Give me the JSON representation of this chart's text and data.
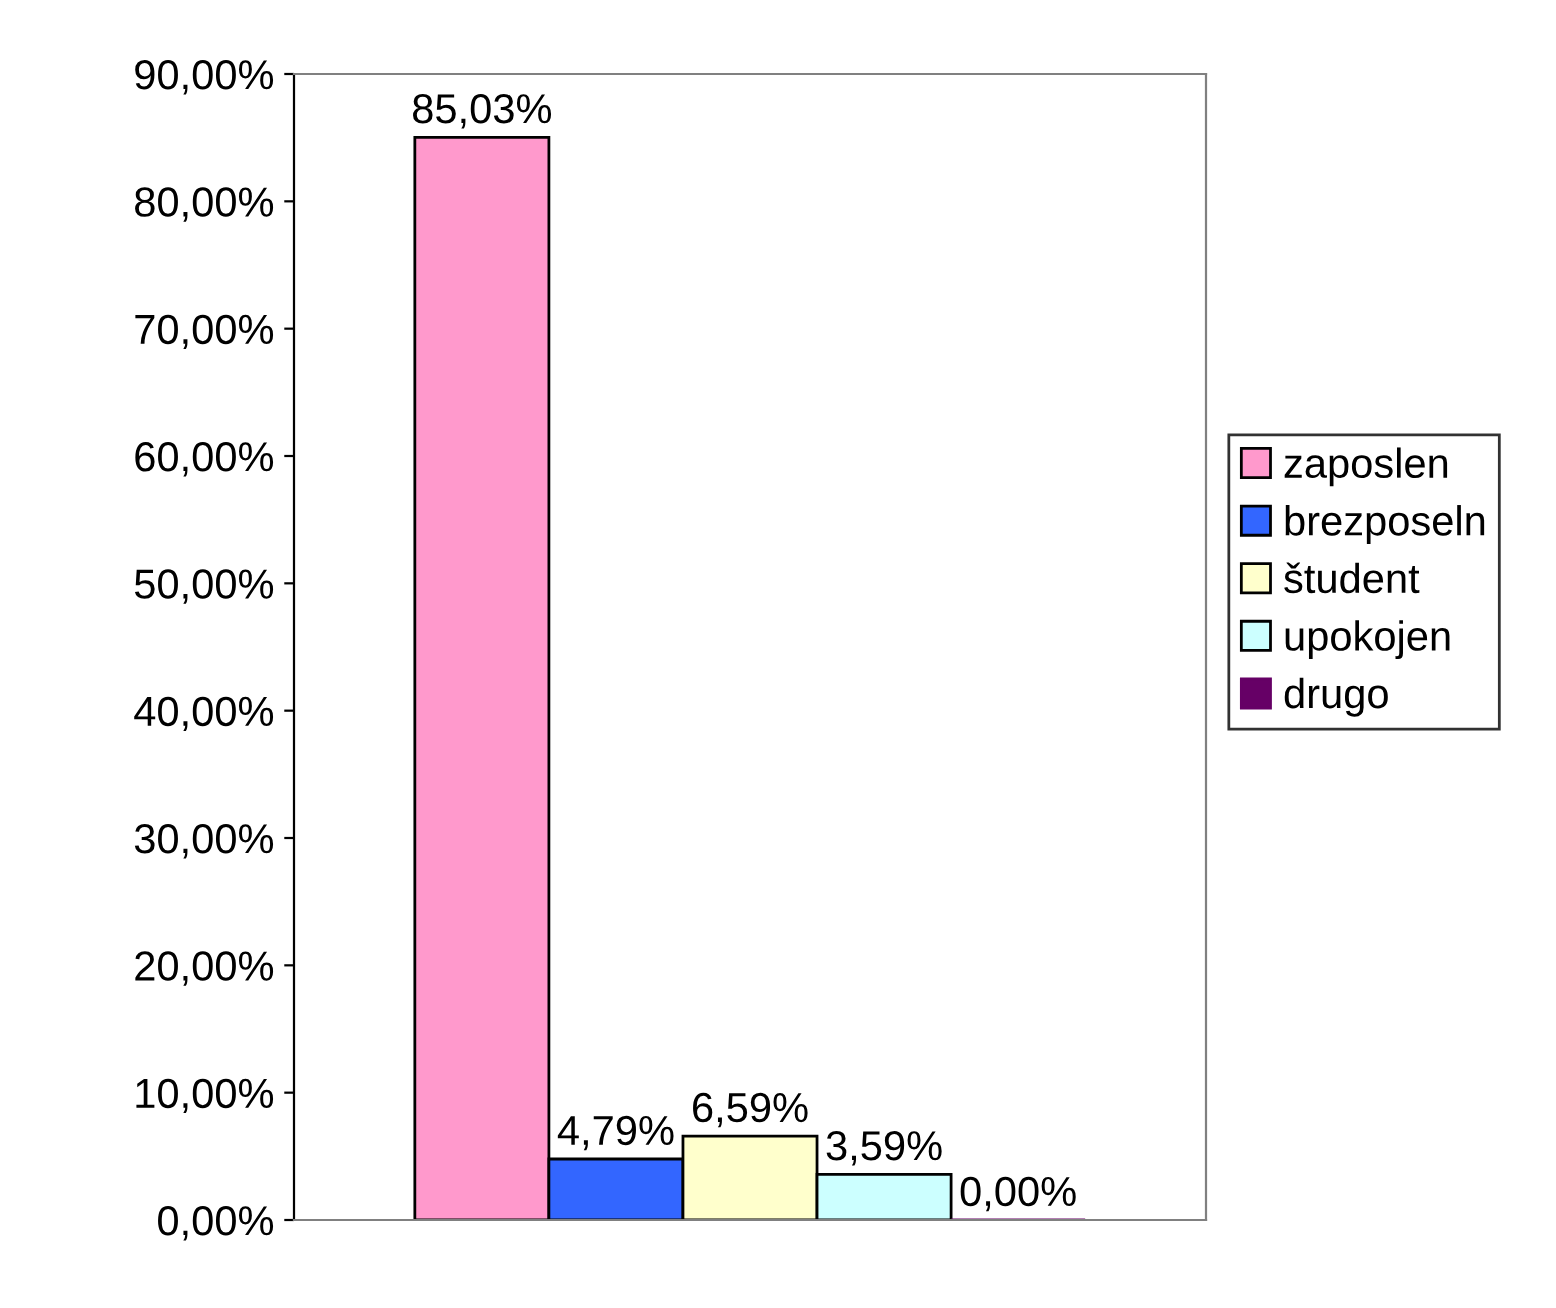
{
  "chart_data": {
    "type": "bar",
    "categories": [
      null
    ],
    "series": [
      {
        "name": "zaposlen",
        "color": "#ff99cc",
        "values": [
          85.03
        ],
        "value_labels": [
          "85,03%"
        ]
      },
      {
        "name": "brezposeln",
        "color": "#3366ff",
        "values": [
          4.79
        ],
        "value_labels": [
          "4,79%"
        ]
      },
      {
        "name": "študent",
        "color": "#ffffcc",
        "values": [
          6.59
        ],
        "value_labels": [
          "6,59%"
        ]
      },
      {
        "name": "upokojen",
        "color": "#ccffff",
        "values": [
          3.59
        ],
        "value_labels": [
          "3,59%"
        ]
      },
      {
        "name": "drugo",
        "color": "#660066",
        "values": [
          0.0
        ],
        "value_labels": [
          "0,00%"
        ]
      }
    ],
    "ylim": [
      0,
      90
    ],
    "yticks": [
      {
        "value": 0,
        "label": "0,00%"
      },
      {
        "value": 10,
        "label": "10,00%"
      },
      {
        "value": 20,
        "label": "20,00%"
      },
      {
        "value": 30,
        "label": "30,00%"
      },
      {
        "value": 40,
        "label": "40,00%"
      },
      {
        "value": 50,
        "label": "50,00%"
      },
      {
        "value": 60,
        "label": "60,00%"
      },
      {
        "value": 70,
        "label": "70,00%"
      },
      {
        "value": 80,
        "label": "80,00%"
      },
      {
        "value": 90,
        "label": "90,00%"
      }
    ],
    "legend": "right",
    "grid": false
  }
}
